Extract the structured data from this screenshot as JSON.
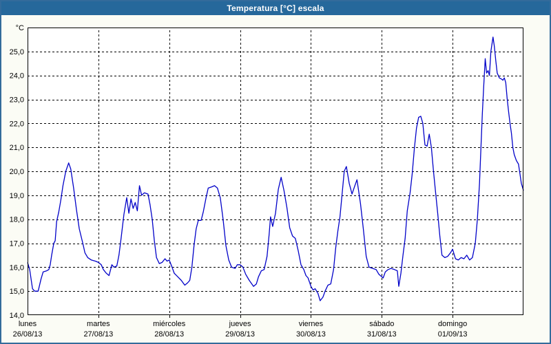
{
  "window": {
    "title": "Temperatura [°C] escala"
  },
  "colors": {
    "titlebar_bg": "#26689b",
    "frame_border": "#336b9b",
    "window_bg": "#fbfcf5",
    "plot_bg": "#ffffff",
    "grid": "#000000",
    "axis": "#000000",
    "line": "#0000c8",
    "title_text": "#ffffff"
  },
  "chart_data": {
    "type": "line",
    "title": "Temperatura [°C] escala",
    "unit_label": "°C",
    "xlabel": "",
    "ylabel": "°C",
    "ylim": [
      14,
      26
    ],
    "ytick_step": 1,
    "grid": "dashed",
    "legend_position": "none",
    "ytick_labels_top_to_bottom": [
      "°C",
      "25,0",
      "24,0",
      "23,0",
      "22,0",
      "21,0",
      "20,0",
      "19,0",
      "18,0",
      "17,0",
      "16,0",
      "15,0",
      "14,0"
    ],
    "x_days": [
      {
        "name": "lunes",
        "date": "26/08/13"
      },
      {
        "name": "martes",
        "date": "27/08/13"
      },
      {
        "name": "miércoles",
        "date": "28/08/13"
      },
      {
        "name": "jueves",
        "date": "29/08/13"
      },
      {
        "name": "viernes",
        "date": "30/08/13"
      },
      {
        "name": "sábado",
        "date": "31/08/13"
      },
      {
        "name": "domingo",
        "date": "01/09/13"
      }
    ],
    "xlim_days": [
      0,
      7
    ],
    "series": [
      {
        "name": "Temperatura",
        "color": "#0000c8",
        "points": [
          [
            0.0,
            16.2
          ],
          [
            0.03,
            15.9
          ],
          [
            0.07,
            15.1
          ],
          [
            0.1,
            15.0
          ],
          [
            0.15,
            15.0
          ],
          [
            0.19,
            15.5
          ],
          [
            0.22,
            15.8
          ],
          [
            0.27,
            15.85
          ],
          [
            0.3,
            15.9
          ],
          [
            0.32,
            16.1
          ],
          [
            0.34,
            16.5
          ],
          [
            0.37,
            17.0
          ],
          [
            0.39,
            17.1
          ],
          [
            0.41,
            17.9
          ],
          [
            0.44,
            18.3
          ],
          [
            0.47,
            18.8
          ],
          [
            0.5,
            19.4
          ],
          [
            0.54,
            20.0
          ],
          [
            0.58,
            20.35
          ],
          [
            0.61,
            20.1
          ],
          [
            0.65,
            19.3
          ],
          [
            0.69,
            18.4
          ],
          [
            0.73,
            17.6
          ],
          [
            0.78,
            17.0
          ],
          [
            0.81,
            16.6
          ],
          [
            0.85,
            16.4
          ],
          [
            0.9,
            16.3
          ],
          [
            0.96,
            16.25
          ],
          [
            1.0,
            16.2
          ],
          [
            1.04,
            16.1
          ],
          [
            1.07,
            15.9
          ],
          [
            1.11,
            15.75
          ],
          [
            1.15,
            15.65
          ],
          [
            1.19,
            16.1
          ],
          [
            1.22,
            16.0
          ],
          [
            1.26,
            16.05
          ],
          [
            1.29,
            16.5
          ],
          [
            1.32,
            17.2
          ],
          [
            1.36,
            18.2
          ],
          [
            1.4,
            18.9
          ],
          [
            1.43,
            18.25
          ],
          [
            1.46,
            18.85
          ],
          [
            1.49,
            18.45
          ],
          [
            1.52,
            18.7
          ],
          [
            1.55,
            18.35
          ],
          [
            1.58,
            19.4
          ],
          [
            1.61,
            19.0
          ],
          [
            1.65,
            19.1
          ],
          [
            1.7,
            19.05
          ],
          [
            1.73,
            18.6
          ],
          [
            1.76,
            18.0
          ],
          [
            1.79,
            17.1
          ],
          [
            1.82,
            16.4
          ],
          [
            1.86,
            16.15
          ],
          [
            1.9,
            16.2
          ],
          [
            1.94,
            16.35
          ],
          [
            1.97,
            16.25
          ],
          [
            2.0,
            16.3
          ],
          [
            2.04,
            16.0
          ],
          [
            2.07,
            15.75
          ],
          [
            2.12,
            15.6
          ],
          [
            2.17,
            15.45
          ],
          [
            2.22,
            15.25
          ],
          [
            2.26,
            15.35
          ],
          [
            2.29,
            15.45
          ],
          [
            2.32,
            16.0
          ],
          [
            2.35,
            16.9
          ],
          [
            2.38,
            17.6
          ],
          [
            2.41,
            17.95
          ],
          [
            2.45,
            17.95
          ],
          [
            2.48,
            18.3
          ],
          [
            2.52,
            18.9
          ],
          [
            2.55,
            19.3
          ],
          [
            2.6,
            19.35
          ],
          [
            2.64,
            19.4
          ],
          [
            2.68,
            19.3
          ],
          [
            2.72,
            18.9
          ],
          [
            2.76,
            18.0
          ],
          [
            2.8,
            16.9
          ],
          [
            2.84,
            16.3
          ],
          [
            2.88,
            16.0
          ],
          [
            2.93,
            15.95
          ],
          [
            2.96,
            16.1
          ],
          [
            3.0,
            16.1
          ],
          [
            3.04,
            16.0
          ],
          [
            3.08,
            15.7
          ],
          [
            3.13,
            15.45
          ],
          [
            3.19,
            15.2
          ],
          [
            3.23,
            15.3
          ],
          [
            3.26,
            15.6
          ],
          [
            3.3,
            15.85
          ],
          [
            3.34,
            15.9
          ],
          [
            3.38,
            16.45
          ],
          [
            3.41,
            17.35
          ],
          [
            3.43,
            18.1
          ],
          [
            3.46,
            17.7
          ],
          [
            3.5,
            18.25
          ],
          [
            3.54,
            19.25
          ],
          [
            3.58,
            19.75
          ],
          [
            3.62,
            19.2
          ],
          [
            3.66,
            18.5
          ],
          [
            3.7,
            17.65
          ],
          [
            3.74,
            17.3
          ],
          [
            3.78,
            17.2
          ],
          [
            3.82,
            16.7
          ],
          [
            3.86,
            16.1
          ],
          [
            3.9,
            15.9
          ],
          [
            3.93,
            15.65
          ],
          [
            3.96,
            15.55
          ],
          [
            4.0,
            15.2
          ],
          [
            4.03,
            15.05
          ],
          [
            4.06,
            15.1
          ],
          [
            4.1,
            14.9
          ],
          [
            4.13,
            14.6
          ],
          [
            4.17,
            14.75
          ],
          [
            4.2,
            15.0
          ],
          [
            4.24,
            15.25
          ],
          [
            4.28,
            15.3
          ],
          [
            4.32,
            15.9
          ],
          [
            4.35,
            16.8
          ],
          [
            4.38,
            17.5
          ],
          [
            4.41,
            18.1
          ],
          [
            4.44,
            19.05
          ],
          [
            4.47,
            20.0
          ],
          [
            4.5,
            20.2
          ],
          [
            4.54,
            19.5
          ],
          [
            4.58,
            19.05
          ],
          [
            4.62,
            19.4
          ],
          [
            4.65,
            19.65
          ],
          [
            4.7,
            18.65
          ],
          [
            4.74,
            17.6
          ],
          [
            4.78,
            16.45
          ],
          [
            4.82,
            16.0
          ],
          [
            4.87,
            15.95
          ],
          [
            4.92,
            15.9
          ],
          [
            4.96,
            15.7
          ],
          [
            5.0,
            15.6
          ],
          [
            5.02,
            15.55
          ],
          [
            5.05,
            15.8
          ],
          [
            5.09,
            15.9
          ],
          [
            5.13,
            15.95
          ],
          [
            5.18,
            15.9
          ],
          [
            5.22,
            15.85
          ],
          [
            5.24,
            15.2
          ],
          [
            5.27,
            15.75
          ],
          [
            5.3,
            16.5
          ],
          [
            5.33,
            17.2
          ],
          [
            5.36,
            18.35
          ],
          [
            5.4,
            19.1
          ],
          [
            5.43,
            19.9
          ],
          [
            5.46,
            20.95
          ],
          [
            5.49,
            21.8
          ],
          [
            5.52,
            22.25
          ],
          [
            5.55,
            22.3
          ],
          [
            5.58,
            22.0
          ],
          [
            5.61,
            21.1
          ],
          [
            5.64,
            21.05
          ],
          [
            5.67,
            21.55
          ],
          [
            5.7,
            21.0
          ],
          [
            5.73,
            20.0
          ],
          [
            5.76,
            19.1
          ],
          [
            5.79,
            18.25
          ],
          [
            5.82,
            17.3
          ],
          [
            5.85,
            16.5
          ],
          [
            5.89,
            16.4
          ],
          [
            5.93,
            16.45
          ],
          [
            5.97,
            16.6
          ],
          [
            6.0,
            16.75
          ],
          [
            6.04,
            16.35
          ],
          [
            6.08,
            16.3
          ],
          [
            6.12,
            16.4
          ],
          [
            6.16,
            16.35
          ],
          [
            6.2,
            16.5
          ],
          [
            6.24,
            16.3
          ],
          [
            6.28,
            16.4
          ],
          [
            6.32,
            17.0
          ],
          [
            6.35,
            18.0
          ],
          [
            6.38,
            19.5
          ],
          [
            6.4,
            21.0
          ],
          [
            6.42,
            22.4
          ],
          [
            6.44,
            23.6
          ],
          [
            6.46,
            24.7
          ],
          [
            6.48,
            24.1
          ],
          [
            6.5,
            24.2
          ],
          [
            6.52,
            24.0
          ],
          [
            6.54,
            25.0
          ],
          [
            6.57,
            25.6
          ],
          [
            6.59,
            25.2
          ],
          [
            6.61,
            24.6
          ],
          [
            6.63,
            24.1
          ],
          [
            6.66,
            23.9
          ],
          [
            6.69,
            23.85
          ],
          [
            6.71,
            23.8
          ],
          [
            6.73,
            23.9
          ],
          [
            6.75,
            23.7
          ],
          [
            6.77,
            23.05
          ],
          [
            6.79,
            22.5
          ],
          [
            6.81,
            22.0
          ],
          [
            6.83,
            21.6
          ],
          [
            6.85,
            21.0
          ],
          [
            6.87,
            20.7
          ],
          [
            6.9,
            20.45
          ],
          [
            6.93,
            20.3
          ],
          [
            6.95,
            19.9
          ],
          [
            6.97,
            19.5
          ],
          [
            6.99,
            19.3
          ],
          [
            7.0,
            19.2
          ]
        ]
      }
    ]
  }
}
